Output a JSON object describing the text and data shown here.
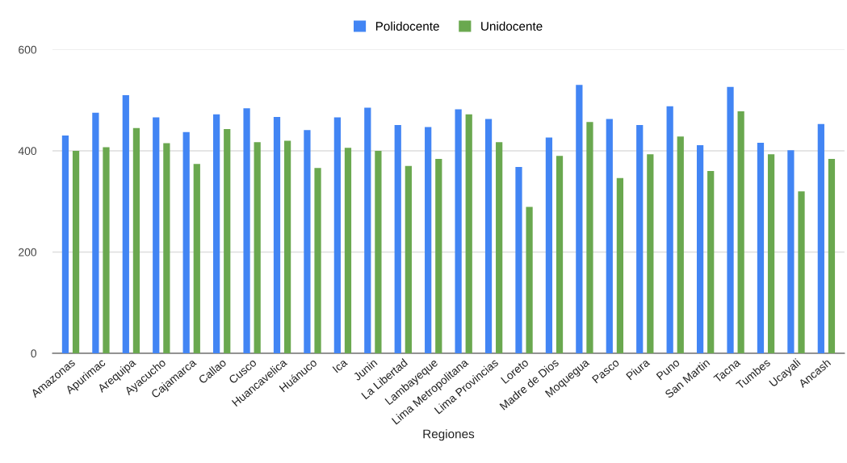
{
  "chart_data": {
    "type": "bar",
    "xlabel": "Regiones",
    "categories": [
      "Amazonas",
      "Apurimac",
      "Arequipa",
      "Ayacucho",
      "Cajamarca",
      "Callao",
      "Cusco",
      "Huancavelica",
      "Huánuco",
      "Ica",
      "Junin",
      "La Libertad",
      "Lambayeque",
      "Lima Metropolitana",
      "Lima Provincias",
      "Loreto",
      "Madre de Dios",
      "Moquegua",
      "Pasco",
      "Piura",
      "Puno",
      "San Martin",
      "Tacna",
      "Tumbes",
      "Ucayali",
      "Ancash"
    ],
    "series": [
      {
        "name": "Polidocente",
        "color": "#4285f4",
        "values": [
          430,
          475,
          510,
          466,
          437,
          472,
          484,
          467,
          441,
          466,
          485,
          451,
          447,
          482,
          463,
          368,
          426,
          530,
          463,
          451,
          488,
          411,
          526,
          416,
          401,
          453
        ]
      },
      {
        "name": "Unidocente",
        "color": "#6aa84f",
        "values": [
          400,
          407,
          445,
          415,
          374,
          443,
          417,
          420,
          366,
          406,
          400,
          370,
          384,
          472,
          417,
          289,
          390,
          457,
          346,
          393,
          428,
          360,
          478,
          393,
          320,
          384
        ]
      }
    ],
    "ylim": [
      0,
      600
    ],
    "yticks": [
      0,
      200,
      400,
      600
    ],
    "grid": "y",
    "legend": "top"
  }
}
